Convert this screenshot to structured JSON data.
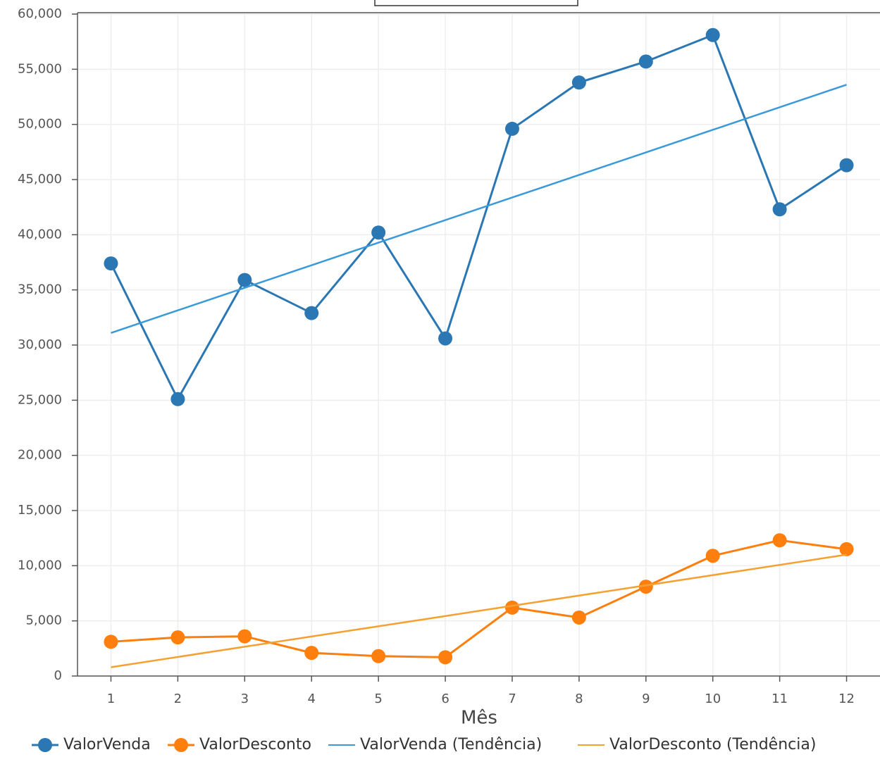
{
  "chart_data": {
    "type": "line",
    "x_label": "Mês",
    "x": [
      1,
      2,
      3,
      4,
      5,
      6,
      7,
      8,
      9,
      10,
      11,
      12
    ],
    "xlim": [
      0.5,
      12.5
    ],
    "xticks": [
      1,
      2,
      3,
      4,
      5,
      6,
      7,
      8,
      9,
      10,
      11,
      12
    ],
    "ylim": [
      0,
      60000
    ],
    "yticks": [
      0,
      {
        "value": 5000,
        "label": "5,000"
      },
      {
        "value": 10000,
        "label": "10,000"
      },
      {
        "value": 15000,
        "label": "15,000"
      },
      {
        "value": 20000,
        "label": "20,000"
      },
      {
        "value": 25000,
        "label": "25,000"
      },
      {
        "value": 30000,
        "label": "30,000"
      },
      {
        "value": 35000,
        "label": "35,000"
      },
      {
        "value": 40000,
        "label": "40,000"
      },
      {
        "value": 45000,
        "label": "45,000"
      },
      {
        "value": 50000,
        "label": "50,000"
      },
      {
        "value": 55000,
        "label": "55,000"
      },
      {
        "value": 60000,
        "label": "60,000"
      }
    ],
    "grid": true,
    "legend": "bottom",
    "series": [
      {
        "name": "ValorVenda",
        "color": "#2a77b4",
        "marker": true,
        "values": [
          37400,
          25100,
          35900,
          32900,
          40200,
          30600,
          49600,
          53800,
          55700,
          58100,
          42300,
          46300
        ]
      },
      {
        "name": "ValorDesconto",
        "color": "#ff7f0e",
        "marker": true,
        "values": [
          3100,
          3500,
          3600,
          2100,
          1800,
          1700,
          6200,
          5300,
          8100,
          10900,
          12300,
          11500
        ]
      },
      {
        "name": "ValorVenda (Tendência)",
        "color": "#3a9ad9",
        "marker": false,
        "values": [
          31100,
          33145,
          35191,
          37236,
          39282,
          41327,
          43373,
          45418,
          47464,
          49509,
          51555,
          53600
        ]
      },
      {
        "name": "ValorDesconto (Tendência)",
        "color": "#f5a030",
        "marker": false,
        "values": [
          800,
          1727,
          2655,
          3582,
          4509,
          5436,
          6364,
          7291,
          8218,
          9145,
          10073,
          11000
        ]
      }
    ]
  }
}
